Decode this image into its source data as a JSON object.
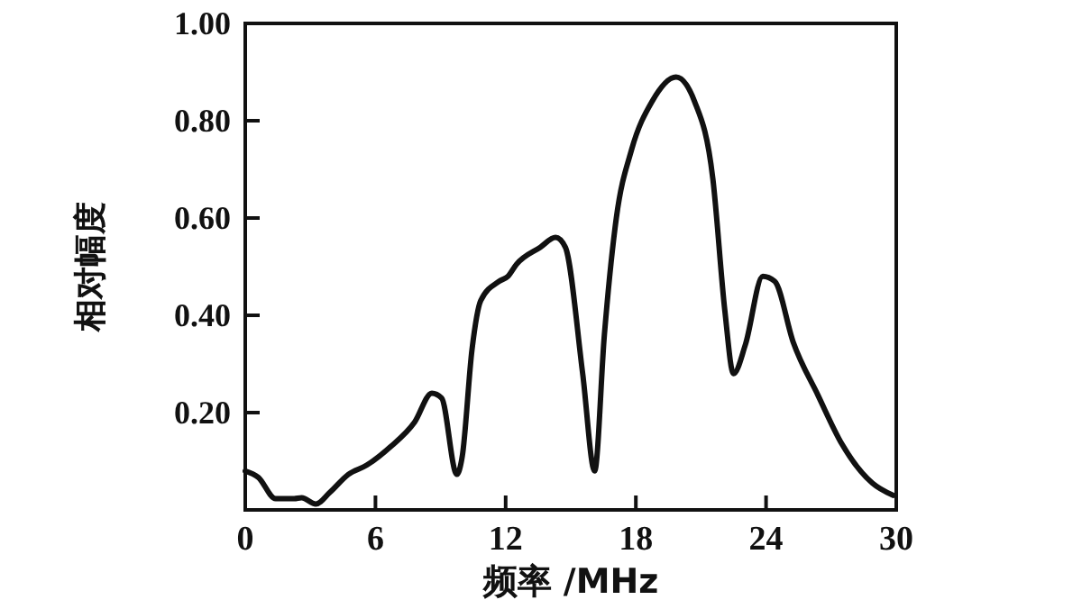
{
  "chart_data": {
    "type": "line",
    "xlabel": "频率 /MHz",
    "ylabel": "相对幅度",
    "xlim": [
      0,
      30
    ],
    "ylim": [
      0,
      1
    ],
    "xticks": [
      0,
      6,
      12,
      18,
      24,
      30
    ],
    "yticks": [
      {
        "value": 0,
        "label": null
      },
      {
        "value": 0.2,
        "label": "0.20"
      },
      {
        "value": 0.4,
        "label": "0.40"
      },
      {
        "value": 0.6,
        "label": "0.60"
      },
      {
        "value": 0.8,
        "label": "0.80"
      },
      {
        "value": 1,
        "label": "1.00"
      }
    ],
    "grid": false,
    "marker": "none",
    "line_style": "solid",
    "series": [
      {
        "color": "#111111",
        "x": [
          0,
          0.6,
          1.4,
          2.25,
          2.6,
          3.25,
          3.9,
          4.75,
          5.6,
          6.7,
          7.8,
          8.6,
          9.05,
          9.75,
          10.0,
          10.45,
          10.85,
          11.7,
          12.1,
          12.5,
          13.6,
          14.3,
          14.75,
          15.55,
          16.1,
          16.55,
          17.1,
          17.8,
          18.75,
          19.85,
          20.7,
          21.55,
          22.1,
          22.5,
          23.05,
          23.85,
          24.4,
          25.25,
          26.4,
          27.5,
          28.9,
          29.85
        ],
        "values": [
          0.08,
          0.067,
          0.023,
          0.023,
          0.025,
          0.012,
          0.036,
          0.073,
          0.092,
          0.13,
          0.18,
          0.24,
          0.23,
          0.073,
          0.11,
          0.33,
          0.43,
          0.47,
          0.48,
          0.505,
          0.54,
          0.56,
          0.54,
          0.28,
          0.08,
          0.36,
          0.6,
          0.74,
          0.84,
          0.89,
          0.84,
          0.68,
          0.41,
          0.28,
          0.34,
          0.48,
          0.47,
          0.345,
          0.235,
          0.135,
          0.055,
          0.03
        ]
      }
    ]
  }
}
